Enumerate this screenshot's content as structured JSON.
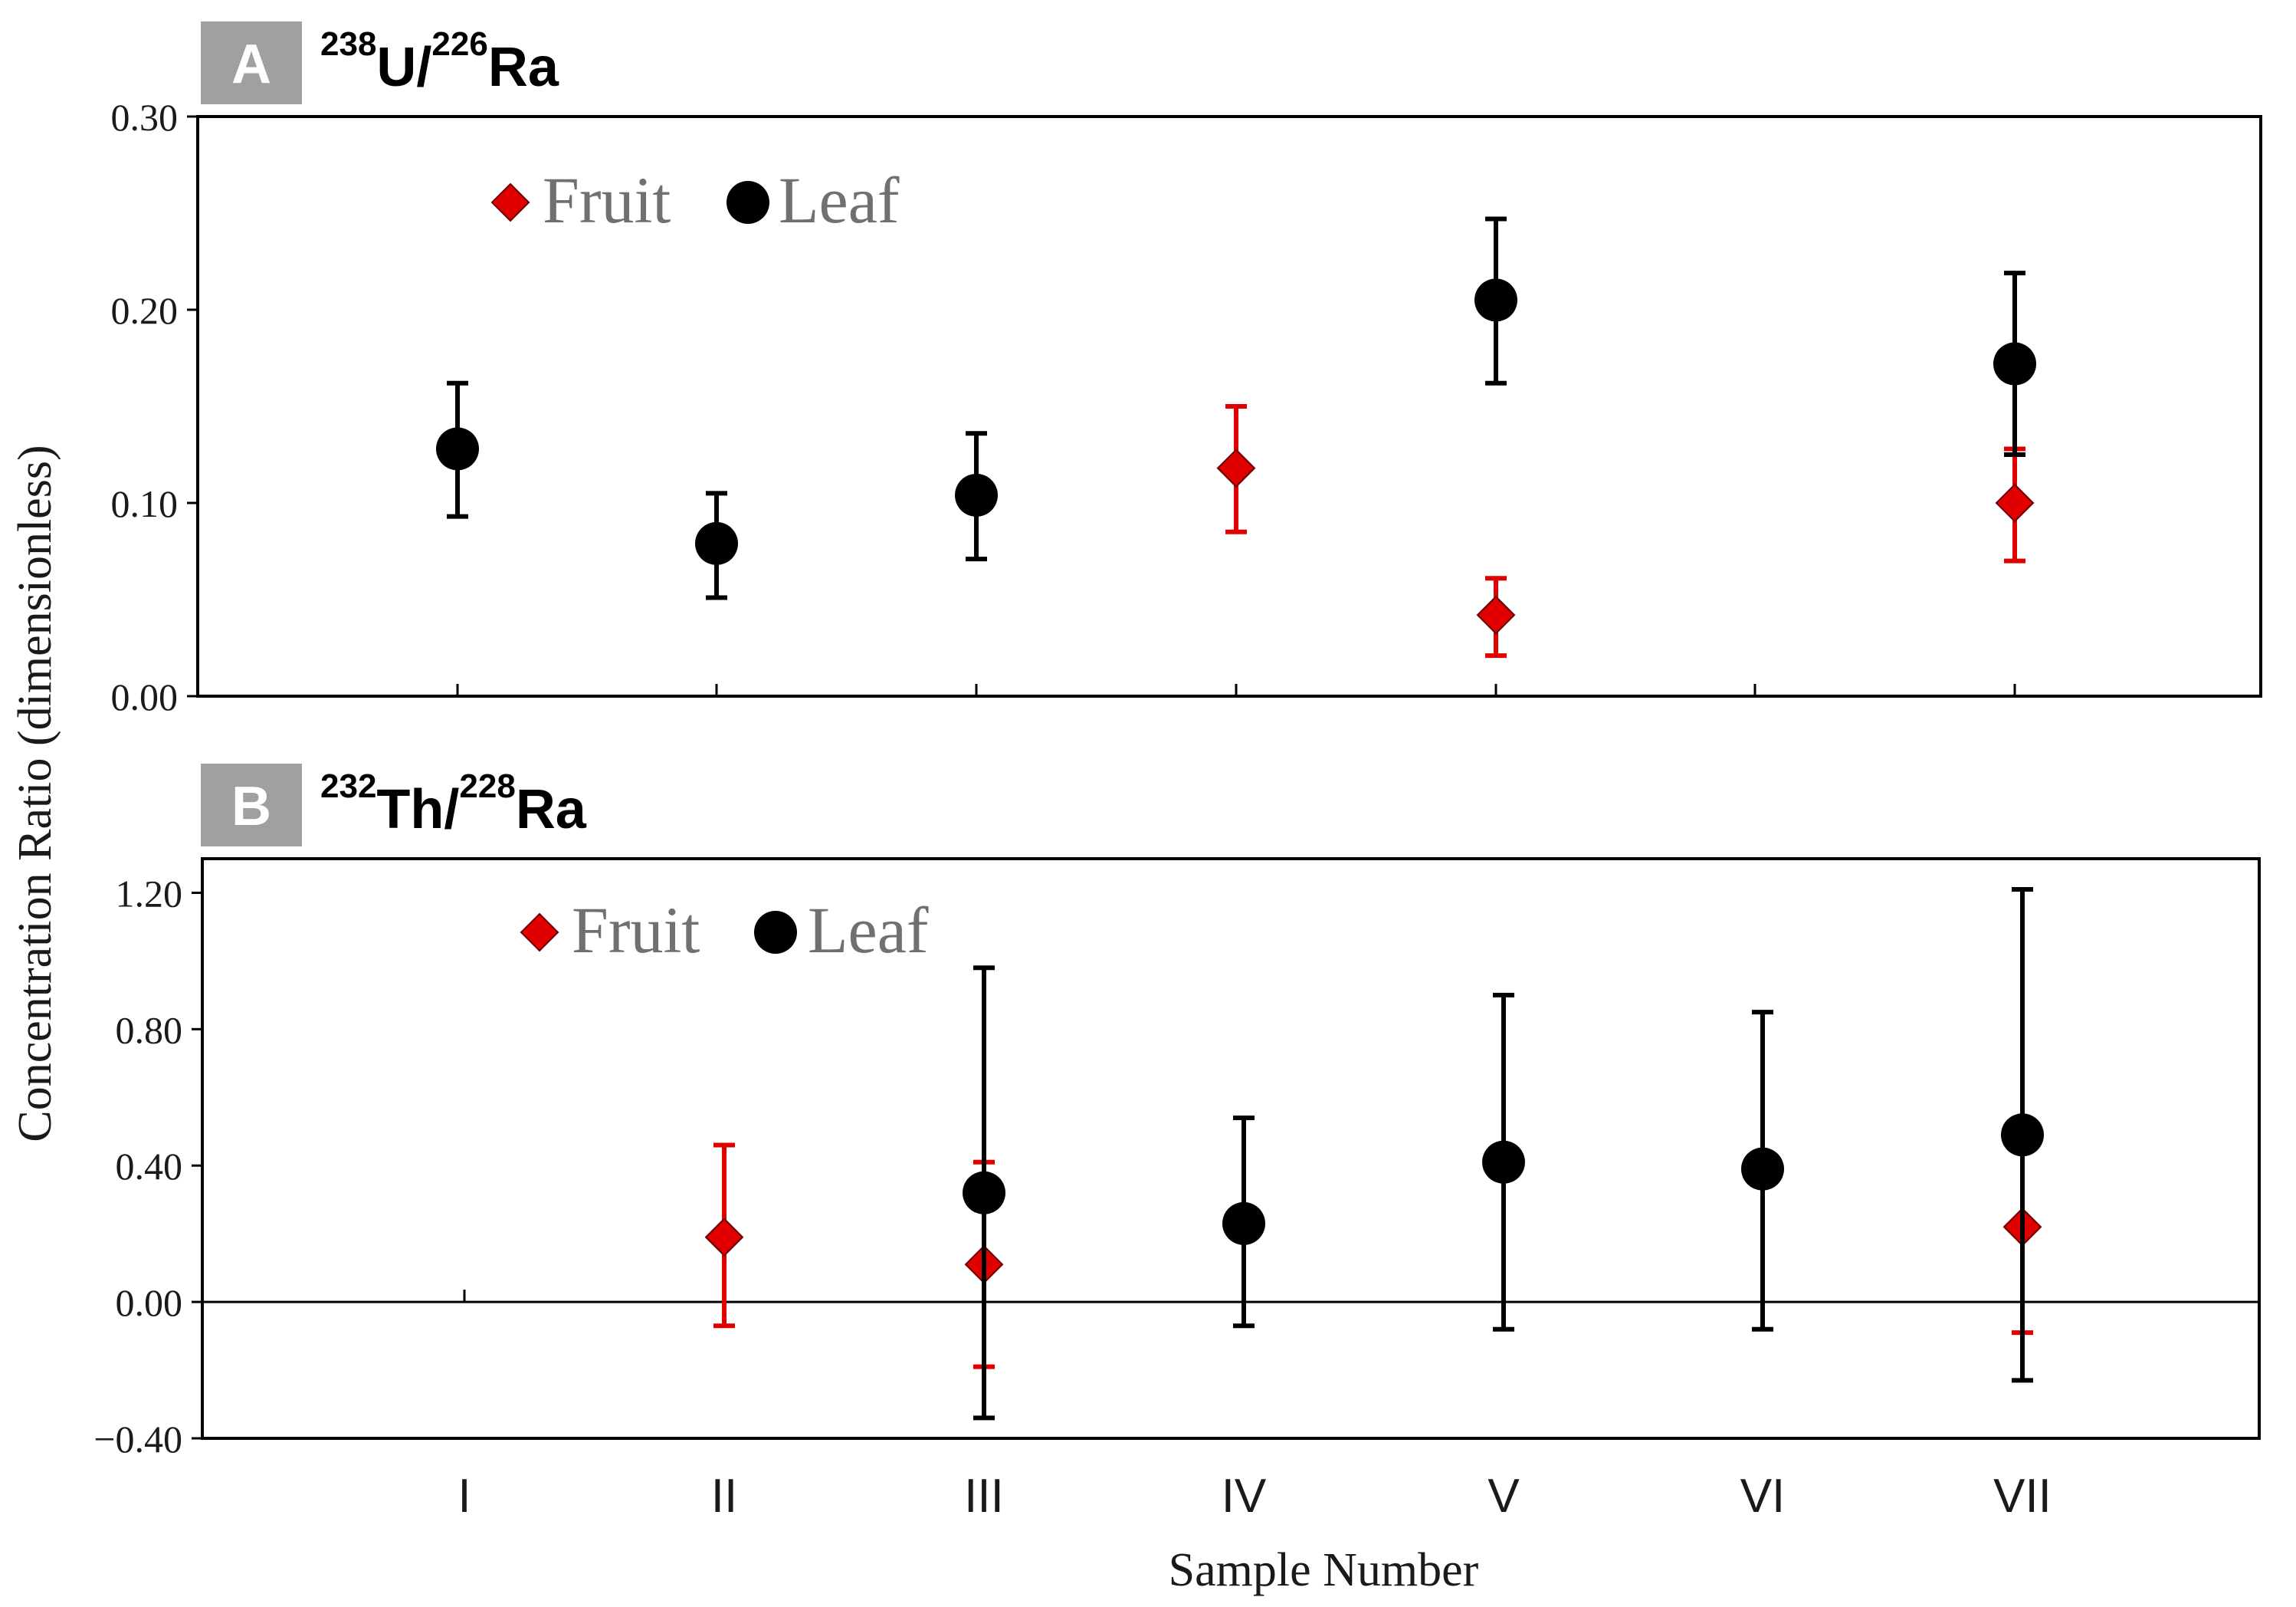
{
  "figure": {
    "y_axis_label": "Concentration Ratio (dimensionless)",
    "x_axis_label": "Sample Number",
    "categories": [
      "I",
      "II",
      "III",
      "IV",
      "V",
      "VI",
      "VII"
    ]
  },
  "chart_data": [
    {
      "type": "scatter",
      "panel_letter": "A",
      "title_parts": {
        "sup1": "238",
        "base1": "U/",
        "sup2": "226",
        "base2": "Ra"
      },
      "categories": [
        "I",
        "II",
        "III",
        "IV",
        "V",
        "VI",
        "VII"
      ],
      "ylim": [
        0,
        0.3
      ],
      "yticks": [
        0.0,
        0.1,
        0.2,
        0.3
      ],
      "ytick_labels": [
        "0.00",
        "0.10",
        "0.20",
        "0.30"
      ],
      "legend": {
        "placement": "top-left",
        "fruit_label": "Fruit",
        "leaf_label": "Leaf"
      },
      "series": [
        {
          "name": "Fruit",
          "marker": "diamond",
          "color": "#e00000",
          "error_color": "#e00000",
          "points": [
            {
              "category": "IV",
              "value": 0.118,
              "err_low": 0.085,
              "err_high": 0.15
            },
            {
              "category": "V",
              "value": 0.042,
              "err_low": 0.021,
              "err_high": 0.061
            },
            {
              "category": "VII",
              "value": 0.1,
              "err_low": 0.07,
              "err_high": 0.128
            }
          ]
        },
        {
          "name": "Leaf",
          "marker": "circle",
          "color": "#000000",
          "error_color": "#000000",
          "points": [
            {
              "category": "I",
              "value": 0.128,
              "err_low": 0.093,
              "err_high": 0.162
            },
            {
              "category": "II",
              "value": 0.079,
              "err_low": 0.051,
              "err_high": 0.105
            },
            {
              "category": "III",
              "value": 0.104,
              "err_low": 0.071,
              "err_high": 0.136
            },
            {
              "category": "V",
              "value": 0.205,
              "err_low": 0.162,
              "err_high": 0.247
            },
            {
              "category": "VII",
              "value": 0.172,
              "err_low": 0.125,
              "err_high": 0.219
            }
          ]
        }
      ]
    },
    {
      "type": "scatter",
      "panel_letter": "B",
      "title_parts": {
        "sup1": "232",
        "base1": "Th/",
        "sup2": "228",
        "base2": "Ra"
      },
      "categories": [
        "I",
        "II",
        "III",
        "IV",
        "V",
        "VI",
        "VII"
      ],
      "ylim": [
        -0.4,
        1.3
      ],
      "yticks": [
        -0.4,
        0.0,
        0.4,
        0.8,
        1.2
      ],
      "ytick_labels": [
        "−0.40",
        "0.00",
        "0.40",
        "0.80",
        "1.20"
      ],
      "zero_line": true,
      "legend": {
        "placement": "top-left",
        "fruit_label": "Fruit",
        "leaf_label": "Leaf"
      },
      "series": [
        {
          "name": "Fruit",
          "marker": "diamond",
          "color": "#e00000",
          "error_color": "#e00000",
          "points": [
            {
              "category": "II",
              "value": 0.19,
              "err_low": -0.07,
              "err_high": 0.46
            },
            {
              "category": "III",
              "value": 0.11,
              "err_low": -0.19,
              "err_high": 0.41
            },
            {
              "category": "VII",
              "value": 0.22,
              "err_low": -0.09,
              "err_high": null
            }
          ]
        },
        {
          "name": "Leaf",
          "marker": "circle",
          "color": "#000000",
          "error_color": "#000000",
          "points": [
            {
              "category": "III",
              "value": 0.32,
              "err_low": -0.34,
              "err_high": 0.98
            },
            {
              "category": "IV",
              "value": 0.23,
              "err_low": -0.07,
              "err_high": 0.54
            },
            {
              "category": "V",
              "value": 0.41,
              "err_low": -0.08,
              "err_high": 0.9
            },
            {
              "category": "VI",
              "value": 0.39,
              "err_low": -0.08,
              "err_high": 0.85
            },
            {
              "category": "VII",
              "value": 0.49,
              "err_low": -0.23,
              "err_high": 1.21
            }
          ]
        }
      ]
    }
  ]
}
